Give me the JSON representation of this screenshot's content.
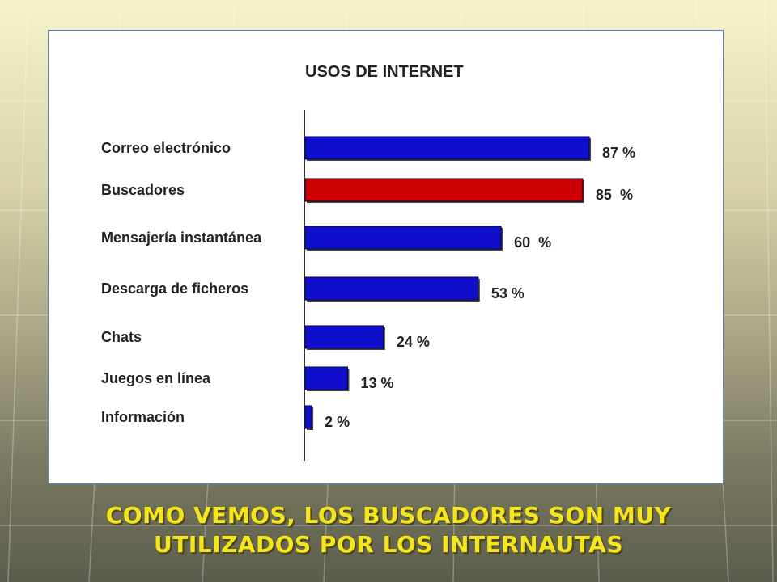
{
  "chart_data": {
    "type": "bar",
    "orientation": "horizontal",
    "title": "USOS DE INTERNET",
    "categories": [
      "Correo electrónico",
      "Buscadores",
      "Mensajería instantánea",
      "Descarga de ficheros",
      "Chats",
      "Juegos en línea",
      "Información"
    ],
    "values": [
      87,
      85,
      60,
      53,
      24,
      13,
      2
    ],
    "value_labels": [
      "87 %",
      "85  %",
      "60  %",
      "53 %",
      "24 %",
      "13 %",
      "2 %"
    ],
    "unit": "%",
    "bar_colors": [
      "#1010cc",
      "#cc0000",
      "#1010cc",
      "#1010cc",
      "#1010cc",
      "#1010cc",
      "#1010cc"
    ],
    "highlight_category": "Buscadores",
    "xlim": [
      0,
      100
    ],
    "grid": false,
    "legend": "none"
  },
  "caption": {
    "line1": "COMO VEMOS, LOS BUSCADORES SON MUY",
    "line2": "UTILIZADOS POR LOS INTERNAUTAS"
  },
  "colors": {
    "caption_text": "#f4e61a",
    "primary_bar": "#1010cc",
    "highlight_bar": "#cc0000"
  }
}
